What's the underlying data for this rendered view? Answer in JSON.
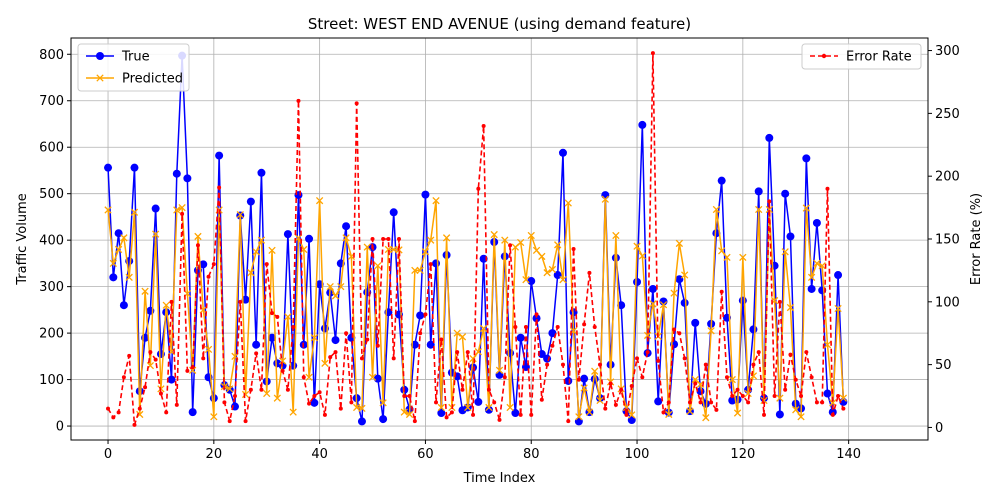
{
  "chart_data": {
    "type": "line",
    "title": "Street: WEST END AVENUE (using demand feature)",
    "xlabel": "Time Index",
    "ylabel": "Traffic Volume",
    "ylabel_right": "Error Rate (%)",
    "xlim": [
      -7,
      155
    ],
    "ylim": [
      -30,
      835
    ],
    "ylim_right": [
      -10,
      310
    ],
    "x_ticks": [
      0,
      20,
      40,
      60,
      80,
      100,
      120,
      140
    ],
    "y_ticks": [
      0,
      100,
      200,
      300,
      400,
      500,
      600,
      700,
      800
    ],
    "y_ticks_right": [
      0,
      50,
      100,
      150,
      200,
      250,
      300
    ],
    "grid": true,
    "legend_left": [
      "True",
      "Predicted"
    ],
    "legend_right": [
      "Error Rate"
    ],
    "colors": {
      "true": "#0000ff",
      "predicted": "#ffa500",
      "error": "#ff0000"
    },
    "x": [
      0,
      1,
      2,
      3,
      4,
      5,
      6,
      7,
      8,
      9,
      10,
      11,
      12,
      13,
      14,
      15,
      16,
      17,
      18,
      19,
      20,
      21,
      22,
      23,
      24,
      25,
      26,
      27,
      28,
      29,
      30,
      31,
      32,
      33,
      34,
      35,
      36,
      37,
      38,
      39,
      40,
      41,
      42,
      43,
      44,
      45,
      46,
      47,
      48,
      49,
      50,
      51,
      52,
      53,
      54,
      55,
      56,
      57,
      58,
      59,
      60,
      61,
      62,
      63,
      64,
      65,
      66,
      67,
      68,
      69,
      70,
      71,
      72,
      73,
      74,
      75,
      76,
      77,
      78,
      79,
      80,
      81,
      82,
      83,
      84,
      85,
      86,
      87,
      88,
      89,
      90,
      91,
      92,
      93,
      94,
      95,
      96,
      97,
      98,
      99,
      100,
      101,
      102,
      103,
      104,
      105,
      106,
      107,
      108,
      109,
      110,
      111,
      112,
      113,
      114,
      115,
      116,
      117,
      118,
      119,
      120,
      121,
      122,
      123,
      124,
      125,
      126,
      127,
      128,
      129,
      130,
      131,
      132,
      133,
      134,
      135,
      136,
      137,
      138,
      139
    ],
    "series": [
      {
        "name": "True",
        "axis": "left",
        "values": [
          556,
          320,
          415,
          260,
          355,
          556,
          75,
          190,
          248,
          468,
          155,
          245,
          100,
          543,
          797,
          533,
          30,
          335,
          348,
          105,
          60,
          582,
          88,
          78,
          42,
          453,
          272,
          483,
          175,
          545,
          96,
          190,
          135,
          130,
          413,
          130,
          497,
          175,
          403,
          50,
          305,
          210,
          287,
          185,
          350,
          430,
          190,
          60,
          10,
          288,
          385,
          102,
          15,
          245,
          460,
          240,
          78,
          36,
          175,
          238,
          498,
          175,
          350,
          28,
          368,
          115,
          107,
          34,
          40,
          126,
          52,
          360,
          35,
          396,
          110,
          365,
          157,
          28,
          190,
          127,
          312,
          232,
          155,
          145,
          200,
          325,
          588,
          97,
          245,
          10,
          102,
          30,
          101,
          60,
          497,
          132,
          362,
          260,
          32,
          13,
          310,
          648,
          157,
          295,
          53,
          268,
          29,
          176,
          316,
          265,
          32,
          222,
          75,
          48,
          220,
          415,
          528,
          233,
          55,
          57,
          270,
          78,
          208,
          505,
          60,
          620,
          345,
          25,
          500,
          408,
          48,
          38,
          576,
          295,
          437,
          292,
          70,
          30,
          325,
          52
        ]
      },
      {
        "name": "Predicted",
        "axis": "left",
        "values": [
          465,
          350,
          380,
          405,
          320,
          460,
          25,
          290,
          130,
          413,
          80,
          260,
          160,
          465,
          470,
          285,
          120,
          408,
          250,
          165,
          20,
          465,
          85,
          80,
          150,
          455,
          68,
          330,
          375,
          400,
          70,
          378,
          60,
          140,
          235,
          30,
          405,
          380,
          105,
          190,
          485,
          135,
          300,
          280,
          300,
          405,
          365,
          40,
          38,
          385,
          105,
          345,
          50,
          380,
          380,
          379,
          30,
          25,
          335,
          335,
          375,
          400,
          485,
          40,
          405,
          40,
          200,
          192,
          40,
          145,
          160,
          210,
          40,
          412,
          120,
          400,
          40,
          385,
          395,
          315,
          410,
          378,
          365,
          330,
          337,
          390,
          315,
          480,
          205,
          20,
          82,
          30,
          118,
          55,
          488,
          95,
          410,
          80,
          40,
          24,
          387,
          366,
          195,
          263,
          193,
          261,
          25,
          286,
          393,
          325,
          32,
          100,
          90,
          18,
          205,
          466,
          377,
          363,
          100,
          28,
          363,
          70,
          108,
          466,
          55,
          466,
          270,
          60,
          375,
          255,
          35,
          20,
          469,
          320,
          350,
          345,
          175,
          50,
          253,
          60
        ]
      },
      {
        "name": "Error Rate",
        "axis": "right",
        "values": [
          15,
          8,
          12,
          40,
          57,
          2,
          15,
          32,
          60,
          54,
          27,
          12,
          100,
          18,
          170,
          45,
          48,
          145,
          55,
          120,
          130,
          191,
          20,
          5,
          25,
          100,
          5,
          30,
          59,
          30,
          130,
          91,
          88,
          45,
          30,
          80,
          260,
          40,
          19,
          25,
          28,
          10,
          56,
          60,
          15,
          75,
          20,
          258,
          55,
          70,
          150,
          65,
          150,
          150,
          55,
          150,
          25,
          25,
          5,
          75,
          90,
          130,
          20,
          70,
          8,
          12,
          60,
          30,
          60,
          10,
          190,
          240,
          30,
          20,
          6,
          40,
          145,
          80,
          10,
          80,
          10,
          90,
          22,
          50,
          65,
          80,
          50,
          5,
          142,
          38,
          82,
          123,
          80,
          50,
          15,
          35,
          18,
          30,
          10,
          33,
          55,
          40,
          60,
          298,
          53,
          12,
          20,
          78,
          75,
          55,
          20,
          35,
          20,
          50,
          20,
          14,
          108,
          40,
          25,
          30,
          25,
          20,
          50,
          60,
          10,
          180,
          25,
          100,
          30,
          58,
          38,
          25,
          60,
          40,
          20,
          20,
          190,
          10,
          25,
          15
        ]
      }
    ]
  }
}
